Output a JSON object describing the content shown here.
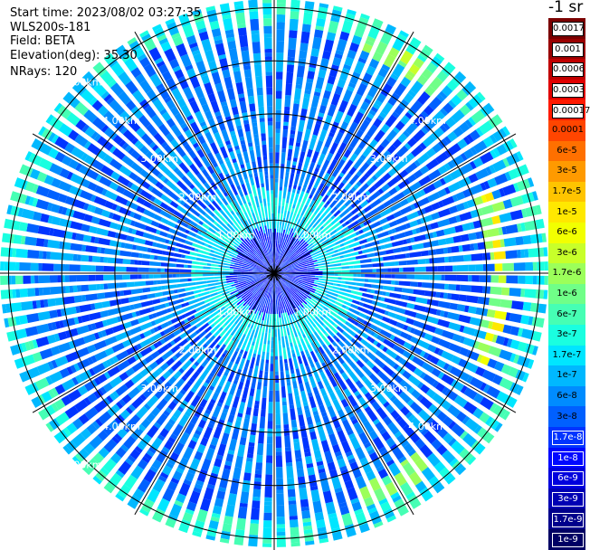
{
  "info": {
    "start_time": "Start time: 2023/08/02 03:27:35",
    "instrument": "WLS200s-181",
    "field": "Field: BETA",
    "elevation": "Elevation(deg): 35.30",
    "nrays": "NRays: 120"
  },
  "colorbar": {
    "units": "-1 sr",
    "labels": [
      "0.0017",
      "0.001",
      "0.0006",
      "0.0003",
      "0.00017",
      "0.0001",
      "6e-5",
      "3e-5",
      "1.7e-5",
      "1e-5",
      "6e-6",
      "3e-6",
      "1.7e-6",
      "1e-6",
      "6e-7",
      "3e-7",
      "1.7e-7",
      "1e-7",
      "6e-8",
      "3e-8",
      "1.7e-8",
      "1e-8",
      "6e-9",
      "3e-9",
      "1.7e-9",
      "1e-9"
    ],
    "colors": [
      "#7a0000",
      "#990000",
      "#c00000",
      "#e00000",
      "#ff1a00",
      "#ff4500",
      "#ff7000",
      "#ff9a00",
      "#ffc400",
      "#ffe800",
      "#f2ff00",
      "#c8ff2a",
      "#9cff5a",
      "#70ff88",
      "#46ffb4",
      "#1affe0",
      "#00e6ff",
      "#00b8ff",
      "#008cff",
      "#0060ff",
      "#0034ff",
      "#0008ff",
      "#0000dd",
      "#0000b4",
      "#00008c",
      "#000064"
    ]
  },
  "range_rings": {
    "labels": [
      "1.00km",
      "2.00km",
      "3.00km",
      "4.00km"
    ],
    "corner_label": "5.00km"
  },
  "ppi": {
    "nrays": 120,
    "max_range_km": 5.0,
    "features": [
      {
        "name": "strong-return-arc-east",
        "range_km": 4.17,
        "azimuth_from_deg": 70,
        "azimuth_to_deg": 115,
        "level": "1e-5"
      },
      {
        "name": "strong-return-arc-northeast",
        "range_km": 4.6,
        "azimuth_from_deg": 20,
        "azimuth_to_deg": 42,
        "level": "3e-6"
      },
      {
        "name": "strong-return-arc-southeast",
        "range_km": 4.45,
        "azimuth_from_deg": 140,
        "azimuth_to_deg": 158,
        "level": "1.7e-6"
      }
    ]
  }
}
